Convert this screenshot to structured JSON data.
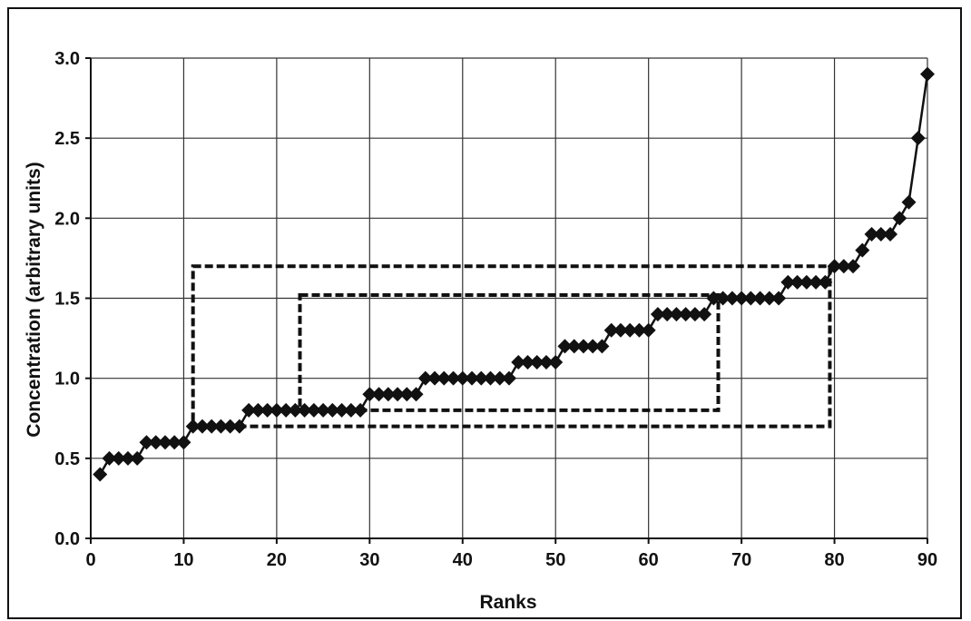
{
  "chart_data": {
    "type": "scatter",
    "xlabel": "Ranks",
    "ylabel": "Concentration (arbitrary units)",
    "xlim": [
      0,
      90
    ],
    "ylim": [
      0.0,
      3.0
    ],
    "x_ticks": [
      "0",
      "10",
      "20",
      "30",
      "40",
      "50",
      "60",
      "70",
      "80",
      "90"
    ],
    "y_ticks": [
      "0.0",
      "0.5",
      "1.0",
      "1.5",
      "2.0",
      "2.5",
      "3.0"
    ],
    "grid": true,
    "series_line": true,
    "series": [
      {
        "x": [
          1,
          2,
          3,
          4,
          5,
          6,
          7,
          8,
          9,
          10,
          11,
          12,
          13,
          14,
          15,
          16,
          17,
          18,
          19,
          20,
          21,
          22,
          23,
          24,
          25,
          26,
          27,
          28,
          29,
          30,
          31,
          32,
          33,
          34,
          35,
          36,
          37,
          38,
          39,
          40,
          41,
          42,
          43,
          44,
          45,
          46,
          47,
          48,
          49,
          50,
          51,
          52,
          53,
          54,
          55,
          56,
          57,
          58,
          59,
          60,
          61,
          62,
          63,
          64,
          65,
          66,
          67,
          68,
          69,
          70,
          71,
          72,
          73,
          74,
          75,
          76,
          77,
          78,
          79,
          80,
          81,
          82,
          83,
          84,
          85,
          86,
          87,
          88,
          89,
          90
        ],
        "y": [
          0.4,
          0.5,
          0.5,
          0.5,
          0.5,
          0.6,
          0.6,
          0.6,
          0.6,
          0.6,
          0.7,
          0.7,
          0.7,
          0.7,
          0.7,
          0.7,
          0.8,
          0.8,
          0.8,
          0.8,
          0.8,
          0.8,
          0.8,
          0.8,
          0.8,
          0.8,
          0.8,
          0.8,
          0.8,
          0.9,
          0.9,
          0.9,
          0.9,
          0.9,
          0.9,
          1.0,
          1.0,
          1.0,
          1.0,
          1.0,
          1.0,
          1.0,
          1.0,
          1.0,
          1.0,
          1.1,
          1.1,
          1.1,
          1.1,
          1.1,
          1.2,
          1.2,
          1.2,
          1.2,
          1.2,
          1.3,
          1.3,
          1.3,
          1.3,
          1.3,
          1.4,
          1.4,
          1.4,
          1.4,
          1.4,
          1.4,
          1.5,
          1.5,
          1.5,
          1.5,
          1.5,
          1.5,
          1.5,
          1.5,
          1.6,
          1.6,
          1.6,
          1.6,
          1.6,
          1.7,
          1.7,
          1.7,
          1.8,
          1.9,
          1.9,
          1.9,
          2.0,
          2.1,
          2.5,
          2.9
        ]
      }
    ],
    "annotations": [
      {
        "kind": "dashed-box",
        "x": [
          11,
          79.5
        ],
        "y": [
          0.7,
          1.7
        ]
      },
      {
        "kind": "dashed-box",
        "x": [
          22.5,
          67.5
        ],
        "y": [
          0.8,
          1.52
        ]
      }
    ]
  }
}
